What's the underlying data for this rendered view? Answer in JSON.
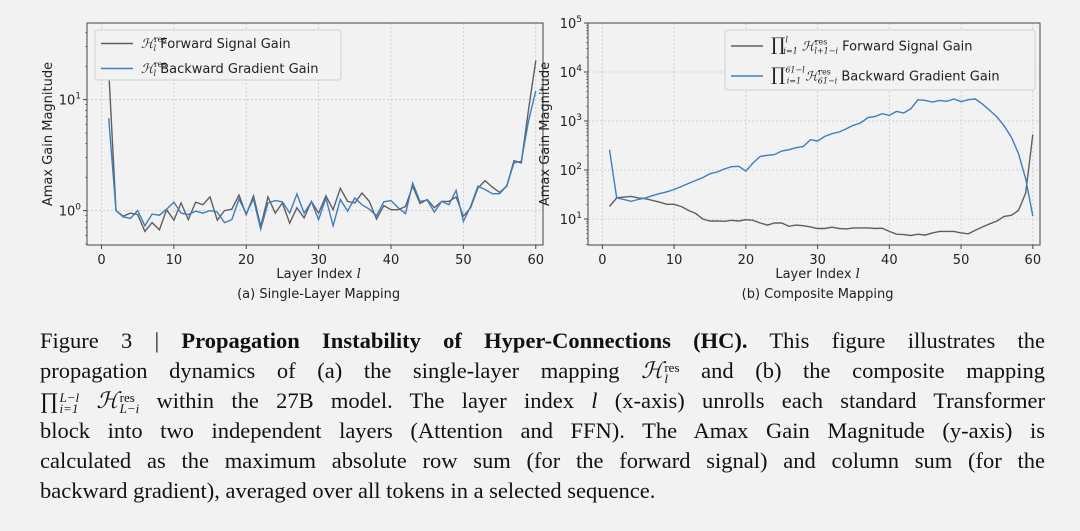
{
  "chart_data": [
    {
      "type": "line",
      "subtitle": "(a) Single-Layer Mapping",
      "xlabel": "Layer Index",
      "xlabel_var": "l",
      "ylabel": "Amax Gain Magnitude",
      "yscale": "log",
      "xlim": [
        -2,
        61
      ],
      "ylim": [
        0.49,
        49
      ],
      "xticks": [
        0,
        10,
        20,
        30,
        40,
        50,
        60
      ],
      "yticks": [
        {
          "value": 1,
          "base": "10",
          "exp": "0"
        },
        {
          "value": 10,
          "base": "10",
          "exp": "1"
        }
      ],
      "grid": true,
      "legend_position": "top-left",
      "x": [
        1,
        2,
        3,
        4,
        5,
        6,
        7,
        8,
        9,
        10,
        11,
        12,
        13,
        14,
        15,
        16,
        17,
        18,
        19,
        20,
        21,
        22,
        23,
        24,
        25,
        26,
        27,
        28,
        29,
        30,
        31,
        32,
        33,
        34,
        35,
        36,
        37,
        38,
        39,
        40,
        41,
        42,
        43,
        44,
        45,
        46,
        47,
        48,
        49,
        50,
        51,
        52,
        53,
        54,
        55,
        56,
        57,
        58,
        59,
        60
      ],
      "series": [
        {
          "name": "Forward Signal Gain",
          "math": {
            "sym": "ℋ",
            "sup": "res",
            "sub": "l"
          },
          "color": "#5f5f5f",
          "values": [
            18.6,
            1.0,
            0.89,
            0.95,
            0.92,
            0.65,
            0.78,
            0.67,
            1.02,
            0.82,
            1.17,
            0.83,
            1.19,
            1.13,
            1.33,
            0.82,
            1.0,
            1.03,
            1.38,
            0.92,
            1.36,
            0.72,
            1.33,
            0.95,
            1.17,
            0.77,
            1.06,
            0.86,
            1.21,
            0.95,
            1.36,
            1.02,
            1.59,
            1.21,
            1.17,
            1.44,
            1.21,
            0.84,
            1.11,
            1.02,
            1.02,
            1.09,
            1.66,
            1.16,
            1.26,
            1.06,
            1.21,
            1.21,
            1.33,
            0.89,
            1.06,
            1.6,
            1.86,
            1.63,
            1.46,
            1.66,
            2.82,
            2.69,
            8.1,
            22.5
          ]
        },
        {
          "name": "Backward Gradient Gain",
          "math": {
            "sym": "ℋ",
            "sup": "res",
            "sub": "l"
          },
          "color": "#3d7ebf",
          "values": [
            6.8,
            1.0,
            0.88,
            0.85,
            1.0,
            0.73,
            0.93,
            0.91,
            1.03,
            1.19,
            0.95,
            0.92,
            0.99,
            0.95,
            1.0,
            0.97,
            0.78,
            0.83,
            1.27,
            0.94,
            1.27,
            0.68,
            1.17,
            1.23,
            1.2,
            0.95,
            1.41,
            0.95,
            1.2,
            0.83,
            1.3,
            0.73,
            1.26,
            0.99,
            1.3,
            1.13,
            1.03,
            0.9,
            1.2,
            1.23,
            1.06,
            0.94,
            1.77,
            1.21,
            1.24,
            0.97,
            1.21,
            1.13,
            1.52,
            0.8,
            1.09,
            1.66,
            1.55,
            1.42,
            1.42,
            1.68,
            2.69,
            2.78,
            6.4,
            12.0
          ]
        }
      ]
    },
    {
      "type": "line",
      "subtitle": "(b) Composite Mapping",
      "xlabel": "Layer Index",
      "xlabel_var": "l",
      "ylabel": "Amax Gain Magnitude",
      "yscale": "log",
      "xlim": [
        -2,
        61
      ],
      "ylim": [
        2.95,
        100000
      ],
      "xticks": [
        0,
        10,
        20,
        30,
        40,
        50,
        60
      ],
      "yticks": [
        {
          "value": 10,
          "base": "10",
          "exp": "1"
        },
        {
          "value": 100,
          "base": "10",
          "exp": "2"
        },
        {
          "value": 1000,
          "base": "10",
          "exp": "3"
        },
        {
          "value": 10000,
          "base": "10",
          "exp": "4"
        },
        {
          "value": 100000,
          "base": "10",
          "exp": "5"
        }
      ],
      "grid": true,
      "legend_position": "top-right",
      "x": [
        1,
        2,
        3,
        4,
        5,
        6,
        7,
        8,
        9,
        10,
        11,
        12,
        13,
        14,
        15,
        16,
        17,
        18,
        19,
        20,
        21,
        22,
        23,
        24,
        25,
        26,
        27,
        28,
        29,
        30,
        31,
        32,
        33,
        34,
        35,
        36,
        37,
        38,
        39,
        40,
        41,
        42,
        43,
        44,
        45,
        46,
        47,
        48,
        49,
        50,
        51,
        52,
        53,
        54,
        55,
        56,
        57,
        58,
        59,
        60
      ],
      "series": [
        {
          "name": "Forward Signal Gain",
          "math": {
            "prod_sup": "l",
            "prod_sub": "i=1",
            "sym": "ℋ",
            "sup": "res",
            "sub": "l+1−i"
          },
          "color": "#5f5f5f",
          "values": [
            18,
            27,
            28,
            29,
            27,
            26,
            24,
            22,
            20,
            20,
            18,
            15,
            13,
            10,
            9.1,
            9.1,
            9,
            9.4,
            9.1,
            9.7,
            9.4,
            8.3,
            7.5,
            8.3,
            8.3,
            7.1,
            7.5,
            7.3,
            6.9,
            6.4,
            6.4,
            6.8,
            6.4,
            6.3,
            6.6,
            6.6,
            6.6,
            6.4,
            6.5,
            5.6,
            4.9,
            4.8,
            4.6,
            4.9,
            4.7,
            5.2,
            5.6,
            5.6,
            5.6,
            5.2,
            5.0,
            5.9,
            6.9,
            8.0,
            9.1,
            11.3,
            11.9,
            15,
            34,
            527
          ]
        },
        {
          "name": "Backward Gradient Gain",
          "math": {
            "prod_sup": "61−l",
            "prod_sub": "i=1",
            "sym": "ℋ",
            "sup": "res",
            "sub": "61−i"
          },
          "color": "#3d7ebf",
          "values": [
            260,
            27,
            25,
            23,
            25,
            27,
            30,
            33,
            36,
            40,
            46,
            53,
            61,
            70,
            84,
            91,
            105,
            117,
            119,
            95,
            139,
            190,
            200,
            206,
            244,
            260,
            286,
            300,
            416,
            390,
            486,
            550,
            596,
            697,
            816,
            910,
            1170,
            1240,
            1410,
            1300,
            1570,
            1460,
            1780,
            2720,
            2630,
            2440,
            2630,
            2520,
            2810,
            2480,
            2720,
            2810,
            2200,
            1650,
            1210,
            800,
            470,
            216,
            66,
            11.5
          ]
        }
      ]
    }
  ],
  "caption": {
    "lines": [
      [
        "Figure 3 | ",
        "Propagation Instability of Hyper-Connections (HC).",
        " This figure illustrates the"
      ],
      [
        "propagation dynamics of (a) the single-layer mapping ",
        "ℋ",
        "res",
        "l",
        " and (b) the composite mapping"
      ],
      [
        "∏",
        "L−l",
        "i=1",
        "ℋ",
        "res",
        "L−i",
        " within the 27B model. The layer index ",
        "l",
        " (x-axis) unrolls each standard Transformer"
      ],
      [
        "block into two independent layers (Attention and FFN). The Amax Gain Magnitude (y-axis) is"
      ],
      [
        "calculated as the maximum absolute row sum (for the forward signal) and column sum (for the"
      ],
      [
        "backward gradient), averaged over all tokens in a selected sequence."
      ]
    ]
  }
}
